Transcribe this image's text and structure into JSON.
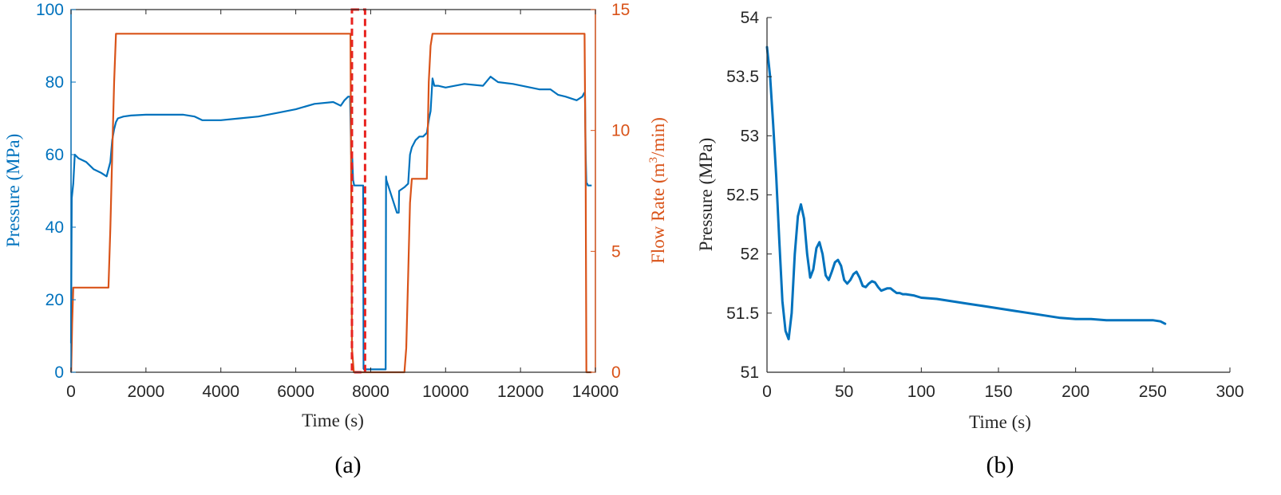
{
  "chart_data": [
    {
      "id": "a",
      "type": "line",
      "caption": "(a)",
      "xlabel": "Time (s)",
      "ylabel_left": "Pressure (MPa)",
      "ylabel_right_prefix": "Flow Rate (m",
      "ylabel_right_sup": "3",
      "ylabel_right_suffix": "/min)",
      "xlim": [
        0,
        14000
      ],
      "ylim_left": [
        0,
        100
      ],
      "ylim_right": [
        0,
        15
      ],
      "xticks": [
        0,
        2000,
        4000,
        6000,
        8000,
        10000,
        12000,
        14000
      ],
      "yticks_left": [
        0,
        20,
        40,
        60,
        80,
        100
      ],
      "yticks_right": [
        0,
        5,
        10,
        15
      ],
      "colors": {
        "pressure": "#0072BD",
        "flow": "#D95319",
        "highlight": "#E8231F"
      },
      "highlight_box": {
        "x_start": 7500,
        "x_end": 7850,
        "y_start": 0,
        "y_end": 100,
        "style": "dashed"
      },
      "series": [
        {
          "name": "Pressure",
          "axis": "left",
          "x": [
            0,
            20,
            60,
            100,
            200,
            400,
            600,
            800,
            950,
            1000,
            1050,
            1100,
            1150,
            1200,
            1250,
            1400,
            1600,
            2000,
            2500,
            3000,
            3300,
            3500,
            4000,
            4500,
            5000,
            5500,
            6000,
            6500,
            7000,
            7200,
            7300,
            7400,
            7450,
            7480,
            7510,
            7530,
            7560,
            7600,
            7700,
            7800,
            7810,
            7820,
            7900,
            8000,
            8200,
            8400,
            8410,
            8420,
            8700,
            8750,
            8760,
            8900,
            9000,
            9050,
            9100,
            9200,
            9300,
            9400,
            9500,
            9560,
            9600,
            9650,
            9700,
            9800,
            10000,
            10500,
            11000,
            11200,
            11400,
            11800,
            12500,
            12800,
            13000,
            13200,
            13500,
            13650,
            13700,
            13720,
            13740,
            13760,
            13780,
            13800,
            13900
          ],
          "values": [
            8,
            48,
            52,
            60,
            59,
            58,
            56,
            55,
            54,
            56,
            58,
            64,
            67,
            69,
            70,
            70.5,
            70.8,
            71,
            71,
            71,
            70.5,
            69.5,
            69.5,
            70,
            70.5,
            71.5,
            72.5,
            74,
            74.5,
            73.5,
            75,
            76,
            76,
            60,
            59,
            53,
            51.5,
            51.5,
            51.5,
            51.5,
            1,
            0.8,
            0.8,
            0.8,
            0.8,
            0.8,
            54,
            53,
            44,
            44,
            50,
            51,
            52,
            60,
            62,
            64,
            65,
            65,
            66,
            70,
            72,
            81,
            79,
            79,
            78.5,
            79.5,
            79,
            81.5,
            80,
            79.5,
            78,
            78,
            76.5,
            76,
            75,
            76,
            77,
            77,
            60,
            52,
            52,
            51.5,
            51.5
          ]
        },
        {
          "name": "Flow Rate",
          "axis": "right",
          "x": [
            0,
            5,
            30,
            60,
            1000,
            1050,
            1100,
            1150,
            1200,
            7450,
            7460,
            7500,
            7550,
            8900,
            8950,
            9000,
            9050,
            9100,
            9200,
            9300,
            9400,
            9500,
            9550,
            9600,
            9650,
            13700,
            13710,
            13740,
            13760,
            13800,
            13900
          ],
          "values": [
            0,
            0,
            2,
            3.5,
            3.5,
            6,
            9,
            12,
            14,
            14,
            14,
            1,
            0,
            0,
            1,
            4,
            7,
            8,
            8,
            8,
            8,
            8,
            12,
            13.5,
            14,
            14,
            14,
            8,
            0,
            0,
            0
          ]
        }
      ]
    },
    {
      "id": "b",
      "type": "line",
      "caption": "(b)",
      "xlabel": "Time (s)",
      "ylabel": "Pressure (MPa)",
      "xlim": [
        0,
        300
      ],
      "ylim": [
        51,
        54
      ],
      "xticks": [
        0,
        50,
        100,
        150,
        200,
        250,
        300
      ],
      "yticks": [
        51,
        51.5,
        52,
        52.5,
        53,
        53.5,
        54
      ],
      "colors": {
        "pressure": "#0072BD"
      },
      "series": [
        {
          "name": "Pressure",
          "x": [
            0,
            2,
            4,
            6,
            8,
            10,
            12,
            14,
            16,
            18,
            20,
            22,
            24,
            26,
            28,
            30,
            32,
            34,
            36,
            38,
            40,
            42,
            44,
            46,
            48,
            50,
            52,
            54,
            56,
            58,
            60,
            62,
            64,
            66,
            68,
            70,
            72,
            74,
            76,
            78,
            80,
            82,
            84,
            86,
            88,
            90,
            95,
            100,
            110,
            120,
            130,
            140,
            150,
            160,
            170,
            180,
            190,
            200,
            210,
            220,
            230,
            240,
            250,
            255,
            258
          ],
          "values": [
            53.75,
            53.5,
            53.1,
            52.65,
            52.1,
            51.6,
            51.35,
            51.28,
            51.5,
            52.0,
            52.32,
            52.42,
            52.3,
            52.0,
            51.8,
            51.87,
            52.05,
            52.1,
            52.0,
            51.82,
            51.78,
            51.85,
            51.93,
            51.95,
            51.9,
            51.78,
            51.75,
            51.78,
            51.83,
            51.85,
            51.8,
            51.73,
            51.72,
            51.75,
            51.77,
            51.76,
            51.72,
            51.69,
            51.7,
            51.71,
            51.71,
            51.69,
            51.67,
            51.67,
            51.66,
            51.66,
            51.65,
            51.63,
            51.62,
            51.6,
            51.58,
            51.56,
            51.54,
            51.52,
            51.5,
            51.48,
            51.46,
            51.45,
            51.45,
            51.44,
            51.44,
            51.44,
            51.44,
            51.43,
            51.41
          ]
        }
      ]
    }
  ]
}
